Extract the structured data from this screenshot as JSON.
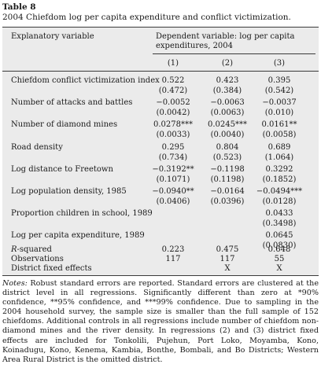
{
  "label": "Table 8",
  "caption": "2004 Chiefdom log per capita expenditure and conflict victimization.",
  "header": {
    "explanatory": "Explanatory variable",
    "dependent_line1": "Dependent variable: log per capita",
    "dependent_line2": "expenditures, 2004",
    "columns": [
      "(1)",
      "(2)",
      "(3)"
    ]
  },
  "rows": [
    {
      "var": "Chiefdom conflict victimization index",
      "c1": "0.522",
      "c2": "0.423",
      "c3": "0.395",
      "se1": "(0.472)",
      "se2": "(0.384)",
      "se3": "(0.542)"
    },
    {
      "var": "Number of attacks and battles",
      "c1": "−0.0052",
      "c2": "−0.0063",
      "c3": "−0.0037",
      "se1": "(0.0042)",
      "se2": "(0.0063)",
      "se3": "(0.010)"
    },
    {
      "var": "Number of diamond mines",
      "c1": "0.0278***",
      "c2": "0.0245***",
      "c3": "0.0161**",
      "se1": "(0.0033)",
      "se2": "(0.0040)",
      "se3": "(0.0058)"
    },
    {
      "var": "Road density",
      "c1": "0.295",
      "c2": "0.804",
      "c3": "0.689",
      "se1": "(0.734)",
      "se2": "(0.523)",
      "se3": "(1.064)"
    },
    {
      "var": "Log distance to Freetown",
      "c1": "−0.3192**",
      "c2": "−0.1198",
      "c3": "0.3292",
      "se1": "(0.1071)",
      "se2": "(0.1198)",
      "se3": "(0.1852)"
    },
    {
      "var": "Log population density, 1985",
      "c1": "−0.0940**",
      "c2": "−0.0164",
      "c3": "−0.0494***",
      "se1": "(0.0406)",
      "se2": "(0.0396)",
      "se3": "(0.0128)"
    },
    {
      "var": "Proportion children in school, 1989",
      "c1": "",
      "c2": "",
      "c3": "0.0433",
      "se1": "",
      "se2": "",
      "se3": "(0.3498)"
    },
    {
      "var": "Log per capita expenditure, 1989",
      "c1": "",
      "c2": "",
      "c3": "0.0645",
      "se1": "",
      "se2": "",
      "se3": "(0.0830)"
    }
  ],
  "stats": [
    {
      "var": "R-squared",
      "c1": "0.223",
      "c2": "0.475",
      "c3": "0.648"
    },
    {
      "var": "Observations",
      "c1": "117",
      "c2": "117",
      "c3": "55"
    },
    {
      "var": "District fixed effects",
      "c1": "",
      "c2": "X",
      "c3": "X"
    }
  ],
  "notes": {
    "heading": "Notes:",
    "text": " Robust standard errors are reported. Standard errors are clustered at the district level in all regressions. Significantly different than zero at *90% confidence, **95% confidence, and ***99% confidence. Due to sampling in the 2004 household survey, the sample size is smaller than the full sample of 152 chiefdoms. Additional controls in all regressions include number of chiefdom non-diamond mines and the river density. In regressions (2) and (3) district fixed effects are included for Tonkolili, Pujehun, Port Loko, Moyamba, Kono, Koinadugu, Kono, Kenema, Kambia, Bonthe, Bombali, and Bo Districts; Western Area Rural District is the omitted district."
  }
}
